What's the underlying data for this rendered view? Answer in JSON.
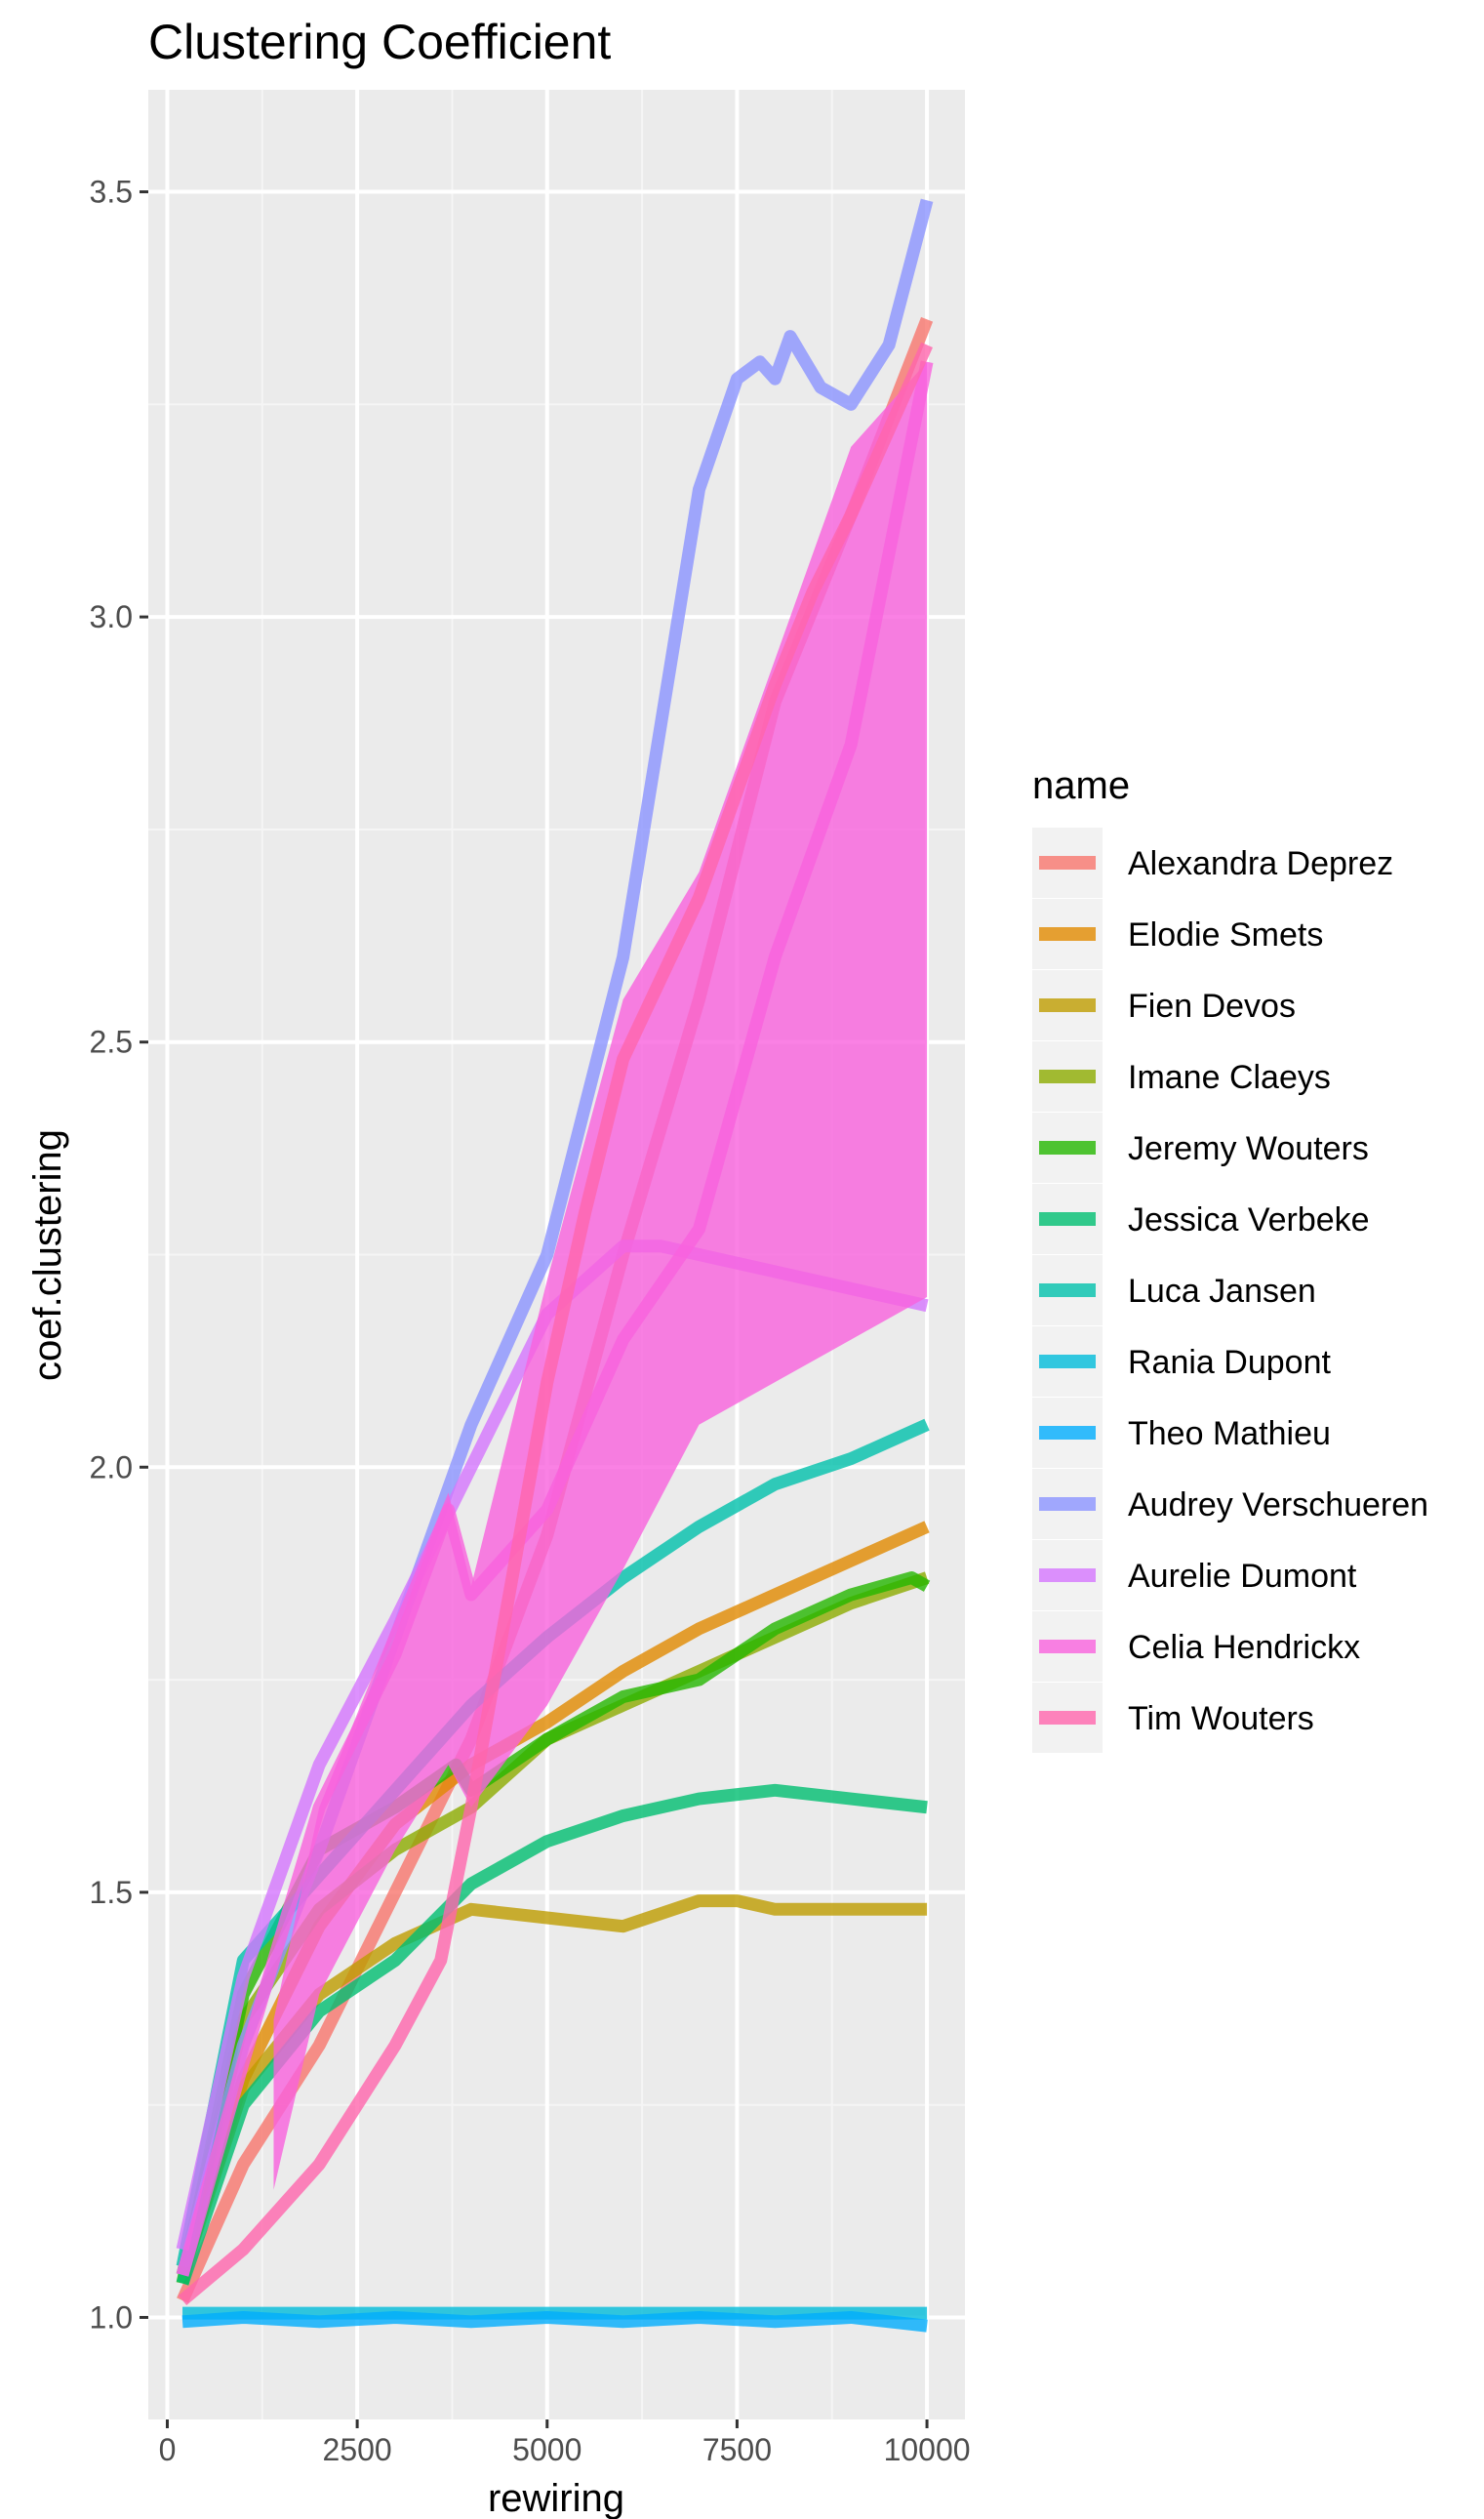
{
  "chart_data": {
    "type": "line",
    "title": "Clustering Coefficient",
    "xlabel": "rewiring",
    "ylabel": "coef.clustering",
    "xlim": [
      -250,
      10500
    ],
    "ylim": [
      0.88,
      3.62
    ],
    "x_ticks": [
      0,
      2500,
      5000,
      7500,
      10000
    ],
    "x_tick_labels": [
      "0",
      "2500",
      "5000",
      "7500",
      "10000"
    ],
    "y_ticks": [
      1.0,
      1.5,
      2.0,
      2.5,
      3.0,
      3.5
    ],
    "y_tick_labels": [
      "1.0",
      "1.5",
      "2.0",
      "2.5",
      "3.0",
      "3.5"
    ],
    "grid": true,
    "legend_title": "name",
    "legend_position": "right",
    "series": [
      {
        "name": "Alexandra Deprez",
        "color": "#F8766D",
        "x": [
          200,
          1000,
          2000,
          3000,
          4000,
          5000,
          6000,
          7000,
          8000,
          9000,
          10000
        ],
        "y": [
          1.02,
          1.18,
          1.32,
          1.5,
          1.68,
          1.92,
          2.25,
          2.55,
          2.9,
          3.12,
          3.35
        ]
      },
      {
        "name": "Elodie Smets",
        "color": "#E18A00",
        "x": [
          200,
          1000,
          2000,
          3000,
          4000,
          5000,
          6000,
          7000,
          8000,
          9000,
          10000
        ],
        "y": [
          1.05,
          1.28,
          1.46,
          1.58,
          1.65,
          1.7,
          1.76,
          1.81,
          1.85,
          1.89,
          1.93
        ]
      },
      {
        "name": "Fien Devos",
        "color": "#BE9C00",
        "x": [
          200,
          1000,
          2000,
          3000,
          4000,
          5000,
          6000,
          7000,
          7500,
          8000,
          9000,
          10000
        ],
        "y": [
          1.05,
          1.27,
          1.38,
          1.44,
          1.48,
          1.47,
          1.46,
          1.49,
          1.49,
          1.48,
          1.48,
          1.48
        ]
      },
      {
        "name": "Imane Claeys",
        "color": "#8CAB00",
        "x": [
          200,
          1000,
          2000,
          3000,
          4000,
          5000,
          6000,
          7000,
          8000,
          9000,
          10000
        ],
        "y": [
          1.05,
          1.35,
          1.48,
          1.55,
          1.6,
          1.68,
          1.72,
          1.76,
          1.8,
          1.84,
          1.87
        ]
      },
      {
        "name": "Jeremy Wouters",
        "color": "#24B700",
        "x": [
          200,
          1000,
          2000,
          3000,
          3800,
          4000,
          5000,
          6000,
          7000,
          8000,
          9000,
          9800,
          10000
        ],
        "y": [
          1.04,
          1.38,
          1.55,
          1.6,
          1.65,
          1.62,
          1.68,
          1.73,
          1.75,
          1.81,
          1.85,
          1.87,
          1.86
        ]
      },
      {
        "name": "Jessica Verbeke",
        "color": "#00BE70",
        "x": [
          200,
          1000,
          2000,
          3000,
          4000,
          5000,
          6000,
          7000,
          8000,
          9000,
          10000
        ],
        "y": [
          1.04,
          1.25,
          1.36,
          1.42,
          1.51,
          1.56,
          1.59,
          1.61,
          1.62,
          1.61,
          1.6
        ]
      },
      {
        "name": "Luca Jansen",
        "color": "#00C1AB",
        "x": [
          200,
          1000,
          2000,
          3000,
          4000,
          5000,
          6000,
          7000,
          8000,
          9000,
          10000
        ],
        "y": [
          1.06,
          1.42,
          1.52,
          1.62,
          1.72,
          1.8,
          1.87,
          1.93,
          1.98,
          2.01,
          2.05
        ]
      },
      {
        "name": "Rania Dupont",
        "color": "#00BBDA",
        "x": [
          200,
          10000
        ],
        "y": [
          1.005,
          1.005
        ]
      },
      {
        "name": "Theo Mathieu",
        "color": "#00ACFC",
        "x": [
          200,
          1000,
          2000,
          3000,
          4000,
          5000,
          6000,
          7000,
          8000,
          9000,
          10000
        ],
        "y": [
          0.995,
          1.0,
          0.995,
          1.0,
          0.995,
          1.0,
          0.995,
          1.0,
          0.995,
          1.0,
          0.99
        ]
      },
      {
        "name": "Audrey Verschueren",
        "color": "#8B93FF",
        "x": [
          200,
          1000,
          2000,
          3000,
          4000,
          5000,
          6000,
          7000,
          7500,
          7800,
          8000,
          8200,
          8600,
          9000,
          9500,
          10000
        ],
        "y": [
          1.05,
          1.32,
          1.55,
          1.8,
          2.05,
          2.25,
          2.6,
          3.15,
          3.28,
          3.3,
          3.28,
          3.33,
          3.27,
          3.25,
          3.32,
          3.49
        ]
      },
      {
        "name": "Aurelie Dumont",
        "color": "#D575FE",
        "x": [
          200,
          1000,
          2000,
          3000,
          4000,
          5000,
          6000,
          6500,
          7000,
          8000,
          9000,
          10000
        ],
        "y": [
          1.08,
          1.4,
          1.65,
          1.82,
          2.0,
          2.18,
          2.26,
          2.26,
          2.25,
          2.23,
          2.21,
          2.19
        ]
      },
      {
        "name": "Celia Hendrickx",
        "color": "#F962DD",
        "x": [
          200,
          1000,
          2000,
          3000,
          3700,
          4000,
          5000,
          6000,
          7000,
          8000,
          9000,
          10000
        ],
        "y": [
          1.05,
          1.3,
          1.6,
          1.78,
          1.95,
          1.85,
          1.95,
          2.15,
          2.28,
          2.6,
          2.85,
          3.3
        ],
        "band": {
          "x": [
            1400,
            2000,
            3000,
            3700,
            4000,
            5000,
            6000,
            7000,
            8000,
            9000,
            10000
          ],
          "ymin": [
            1.15,
            1.38,
            1.55,
            1.65,
            1.6,
            1.72,
            1.88,
            2.05,
            2.1,
            2.15,
            2.2
          ],
          "ymax": [
            1.35,
            1.6,
            1.82,
            1.97,
            1.86,
            2.22,
            2.55,
            2.7,
            2.95,
            3.2,
            3.3
          ]
        }
      },
      {
        "name": "Tim Wouters",
        "color": "#FF65AC",
        "x": [
          200,
          1000,
          2000,
          3000,
          3600,
          4000,
          4500,
          5000,
          5500,
          6000,
          7000,
          8000,
          8500,
          9000,
          9500,
          10000
        ],
        "y": [
          1.02,
          1.08,
          1.18,
          1.32,
          1.42,
          1.6,
          1.85,
          2.1,
          2.3,
          2.48,
          2.67,
          2.92,
          3.03,
          3.12,
          3.22,
          3.32
        ]
      }
    ]
  }
}
